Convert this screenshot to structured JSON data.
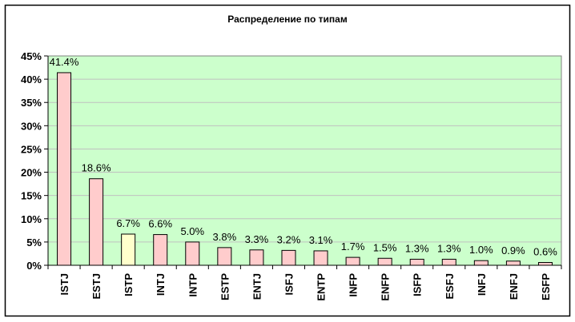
{
  "chart_data": {
    "type": "bar",
    "title": "Распределение по типам",
    "xlabel": "",
    "ylabel": "",
    "ylim": [
      0,
      45
    ],
    "yticks": [
      "0%",
      "5%",
      "10%",
      "15%",
      "20%",
      "25%",
      "30%",
      "35%",
      "40%",
      "45%"
    ],
    "grid": true,
    "categories": [
      "ISTJ",
      "ESTJ",
      "ISTP",
      "INTJ",
      "INTP",
      "ESTP",
      "ENTJ",
      "ISFJ",
      "ENTP",
      "INFP",
      "ENFP",
      "ISFP",
      "ESFJ",
      "INFJ",
      "ENFJ",
      "ESFP"
    ],
    "values": [
      41.4,
      18.6,
      6.7,
      6.6,
      5.0,
      3.8,
      3.3,
      3.2,
      3.1,
      1.7,
      1.5,
      1.3,
      1.3,
      1.0,
      0.9,
      0.6
    ],
    "labels": [
      "41.4%",
      "18.6%",
      "6.7%",
      "6.6%",
      "5.0%",
      "3.8%",
      "3.3%",
      "3.2%",
      "3.1%",
      "1.7%",
      "1.5%",
      "1.3%",
      "1.3%",
      "1.0%",
      "0.9%",
      "0.6%"
    ],
    "highlight_index": 2,
    "colors": {
      "plot_bg": "#CCFFCC",
      "bar": "#FFCCCC",
      "bar_highlight": "#FFFFCC",
      "grid": "#C0C0C0",
      "border": "#000000"
    }
  }
}
